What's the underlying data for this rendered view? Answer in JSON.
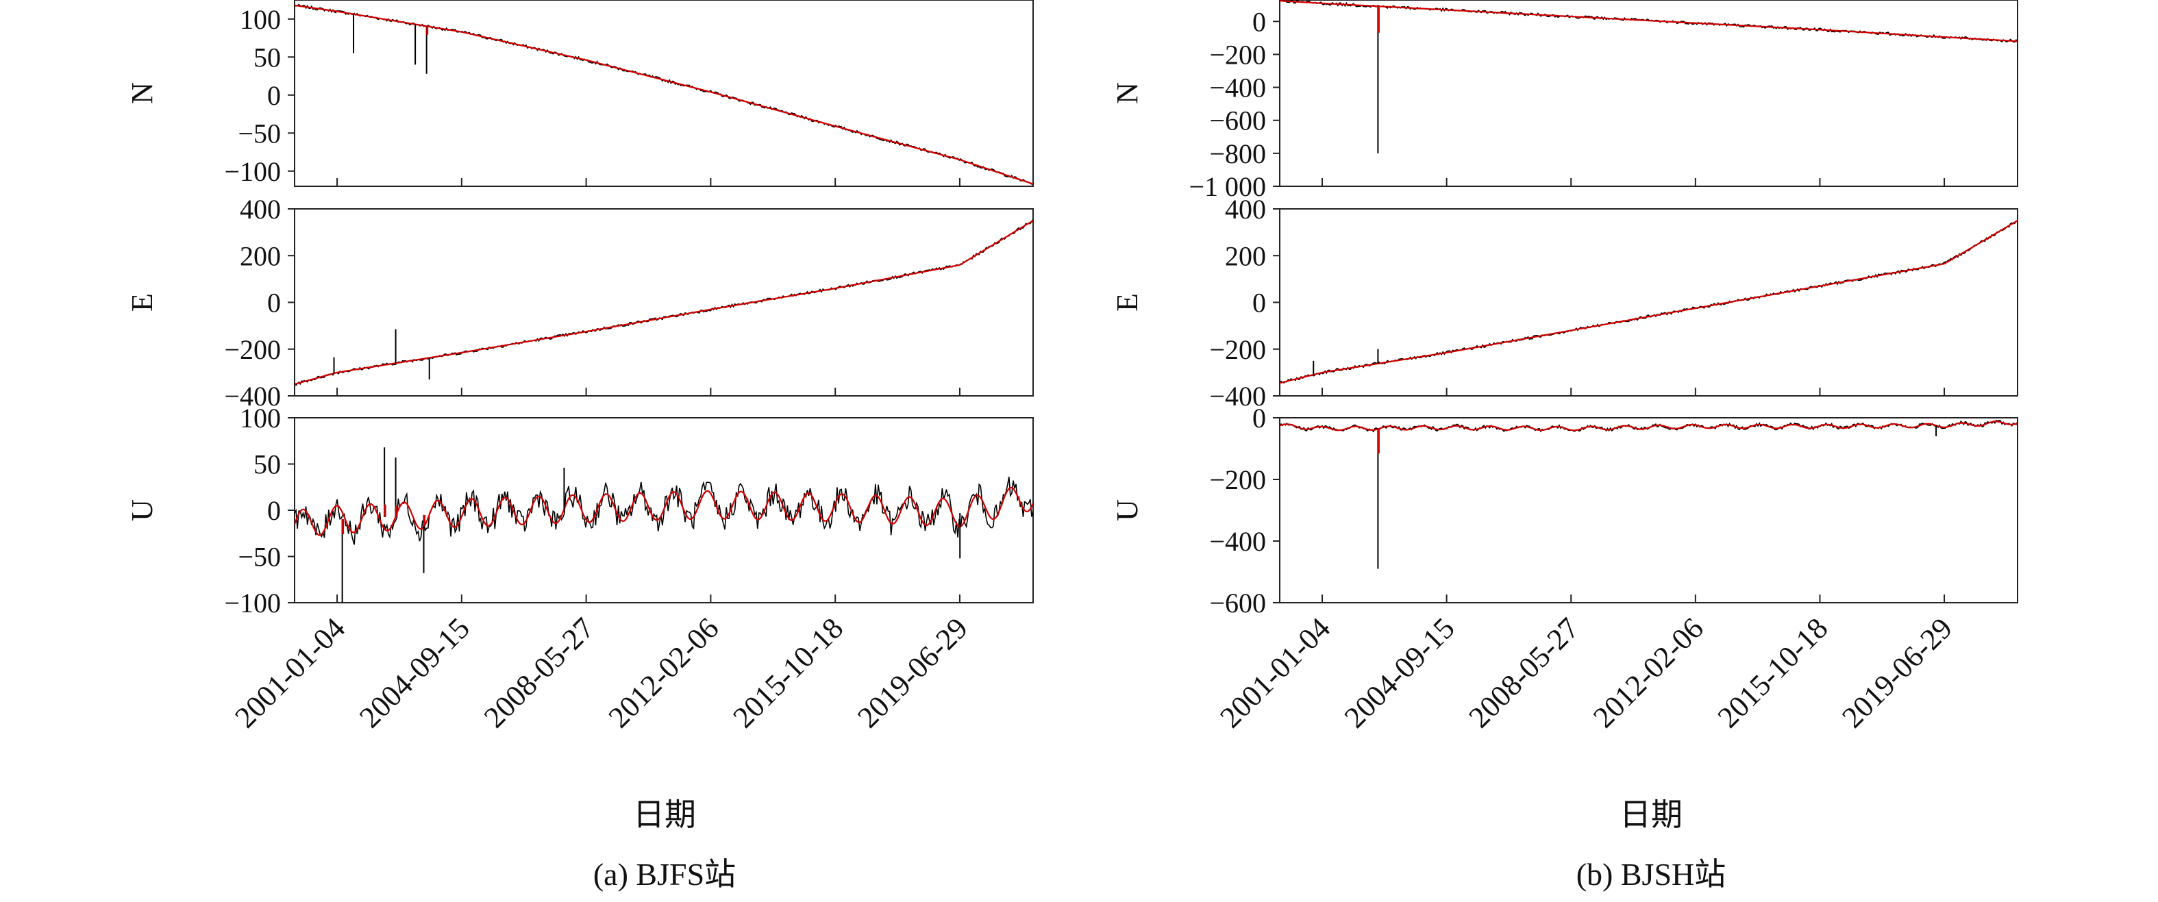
{
  "figure": {
    "panels": [
      {
        "caption": "(a) BJFS站",
        "xlabel": "日期"
      },
      {
        "caption": "(b) BJSH站",
        "xlabel": "日期"
      }
    ]
  },
  "chart_data": [
    {
      "type": "line",
      "title": "(a) BJFS站",
      "xlabel": "日期",
      "x_tick_labels": [
        "2001-01-04",
        "2004-09-15",
        "2008-05-27",
        "2012-02-06",
        "2015-10-18",
        "2019-06-29"
      ],
      "xlim": [
        "1999-10-01",
        "2021-09-01"
      ],
      "colors": {
        "observed": "#000000",
        "fitted": "#d40000"
      },
      "subplots": [
        {
          "ylabel": "N",
          "ylim": [
            -120,
            125
          ],
          "yticks": [
            100,
            50,
            0,
            -50,
            -100
          ],
          "series": [
            {
              "x": [
                "1999-10-01",
                "2001-01-04",
                "2004-09-15",
                "2008-05-27",
                "2012-02-06",
                "2015-10-18",
                "2019-06-29",
                "2021-09-01"
              ],
              "values": [
                118,
                110,
                83,
                46,
                4,
                -41,
                -85,
                -117
              ]
            }
          ],
          "spikes": [
            {
              "x": "2001-07-01",
              "value": 55
            },
            {
              "x": "2003-05-01",
              "value": 40
            },
            {
              "x": "2003-09-01",
              "value": 28
            }
          ]
        },
        {
          "ylabel": "E",
          "ylim": [
            -400,
            400
          ],
          "yticks": [
            400,
            200,
            0,
            -200,
            -400
          ],
          "series": [
            {
              "x": [
                "1999-10-01",
                "2001-01-04",
                "2004-09-15",
                "2008-05-27",
                "2012-02-06",
                "2015-10-18",
                "2019-06-29",
                "2021-09-01"
              ],
              "values": [
                -350,
                -300,
                -215,
                -125,
                -30,
                60,
                160,
                350
              ]
            }
          ],
          "spikes": [
            {
              "x": "2000-12-01",
              "value": -235
            },
            {
              "x": "2002-10-01",
              "value": -115
            },
            {
              "x": "2003-10-01",
              "value": -330
            }
          ]
        },
        {
          "ylabel": "U",
          "ylim": [
            -100,
            100
          ],
          "yticks": [
            100,
            50,
            0,
            -50,
            -100
          ],
          "series": [
            {
              "x": [
                "1999-10-01",
                "2001-01-04",
                "2004-09-15",
                "2008-05-27",
                "2012-02-06",
                "2015-10-18",
                "2019-06-29",
                "2021-09-01"
              ],
              "values": [
                -15,
                -10,
                -3,
                2,
                6,
                3,
                -3,
                15
              ]
            }
          ],
          "seasonal_amplitude": 15,
          "spikes": [
            {
              "x": "2001-03-01",
              "value": -100
            },
            {
              "x": "2002-06-01",
              "value": 68
            },
            {
              "x": "2002-10-01",
              "value": 57
            },
            {
              "x": "2003-08-01",
              "value": -68
            },
            {
              "x": "2007-10-01",
              "value": 46
            },
            {
              "x": "2019-07-01",
              "value": -52
            }
          ]
        }
      ]
    },
    {
      "type": "line",
      "title": "(b) BJSH站",
      "xlabel": "日期",
      "x_tick_labels": [
        "2001-01-04",
        "2004-09-15",
        "2008-05-27",
        "2012-02-06",
        "2015-10-18",
        "2019-06-29"
      ],
      "xlim": [
        "1999-10-01",
        "2021-09-01"
      ],
      "colors": {
        "observed": "#000000",
        "fitted": "#d40000"
      },
      "subplots": [
        {
          "ylabel": "N",
          "ylim": [
            -1000,
            130
          ],
          "yticks": [
            0,
            -200,
            -400,
            -600,
            -800,
            -1000
          ],
          "ytick_labels": [
            "0",
            "−200",
            "−400",
            "−600",
            "−800",
            "−1 000"
          ],
          "series": [
            {
              "x": [
                "1999-10-01",
                "2001-01-04",
                "2004-09-15",
                "2008-05-27",
                "2012-02-06",
                "2015-10-18",
                "2019-06-29",
                "2021-09-01"
              ],
              "values": [
                125,
                110,
                70,
                30,
                -10,
                -50,
                -95,
                -120
              ]
            }
          ],
          "spikes": [
            {
              "x": "2002-09-01",
              "value": -800
            }
          ]
        },
        {
          "ylabel": "E",
          "ylim": [
            -400,
            400
          ],
          "yticks": [
            400,
            200,
            0,
            -200,
            -400
          ],
          "series": [
            {
              "x": [
                "1999-10-01",
                "2001-01-04",
                "2004-09-15",
                "2008-05-27",
                "2012-02-06",
                "2015-10-18",
                "2019-06-29",
                "2021-09-01"
              ],
              "values": [
                -345,
                -300,
                -215,
                -120,
                -25,
                70,
                165,
                350
              ]
            }
          ],
          "spikes": [
            {
              "x": "2000-10-01",
              "value": -250
            },
            {
              "x": "2002-09-01",
              "value": -200
            }
          ]
        },
        {
          "ylabel": "U",
          "ylim": [
            -600,
            0
          ],
          "yticks": [
            0,
            -200,
            -400,
            -600
          ],
          "series": [
            {
              "x": [
                "1999-10-01",
                "2001-01-04",
                "2004-09-15",
                "2008-05-27",
                "2012-02-06",
                "2015-10-18",
                "2019-06-29",
                "2021-09-01"
              ],
              "values": [
                -25,
                -35,
                -32,
                -35,
                -28,
                -28,
                -25,
                -15
              ]
            }
          ],
          "seasonal_amplitude": 6,
          "spikes": [
            {
              "x": "2002-09-01",
              "value": -490
            },
            {
              "x": "2019-04-01",
              "value": -60
            }
          ]
        }
      ]
    }
  ]
}
